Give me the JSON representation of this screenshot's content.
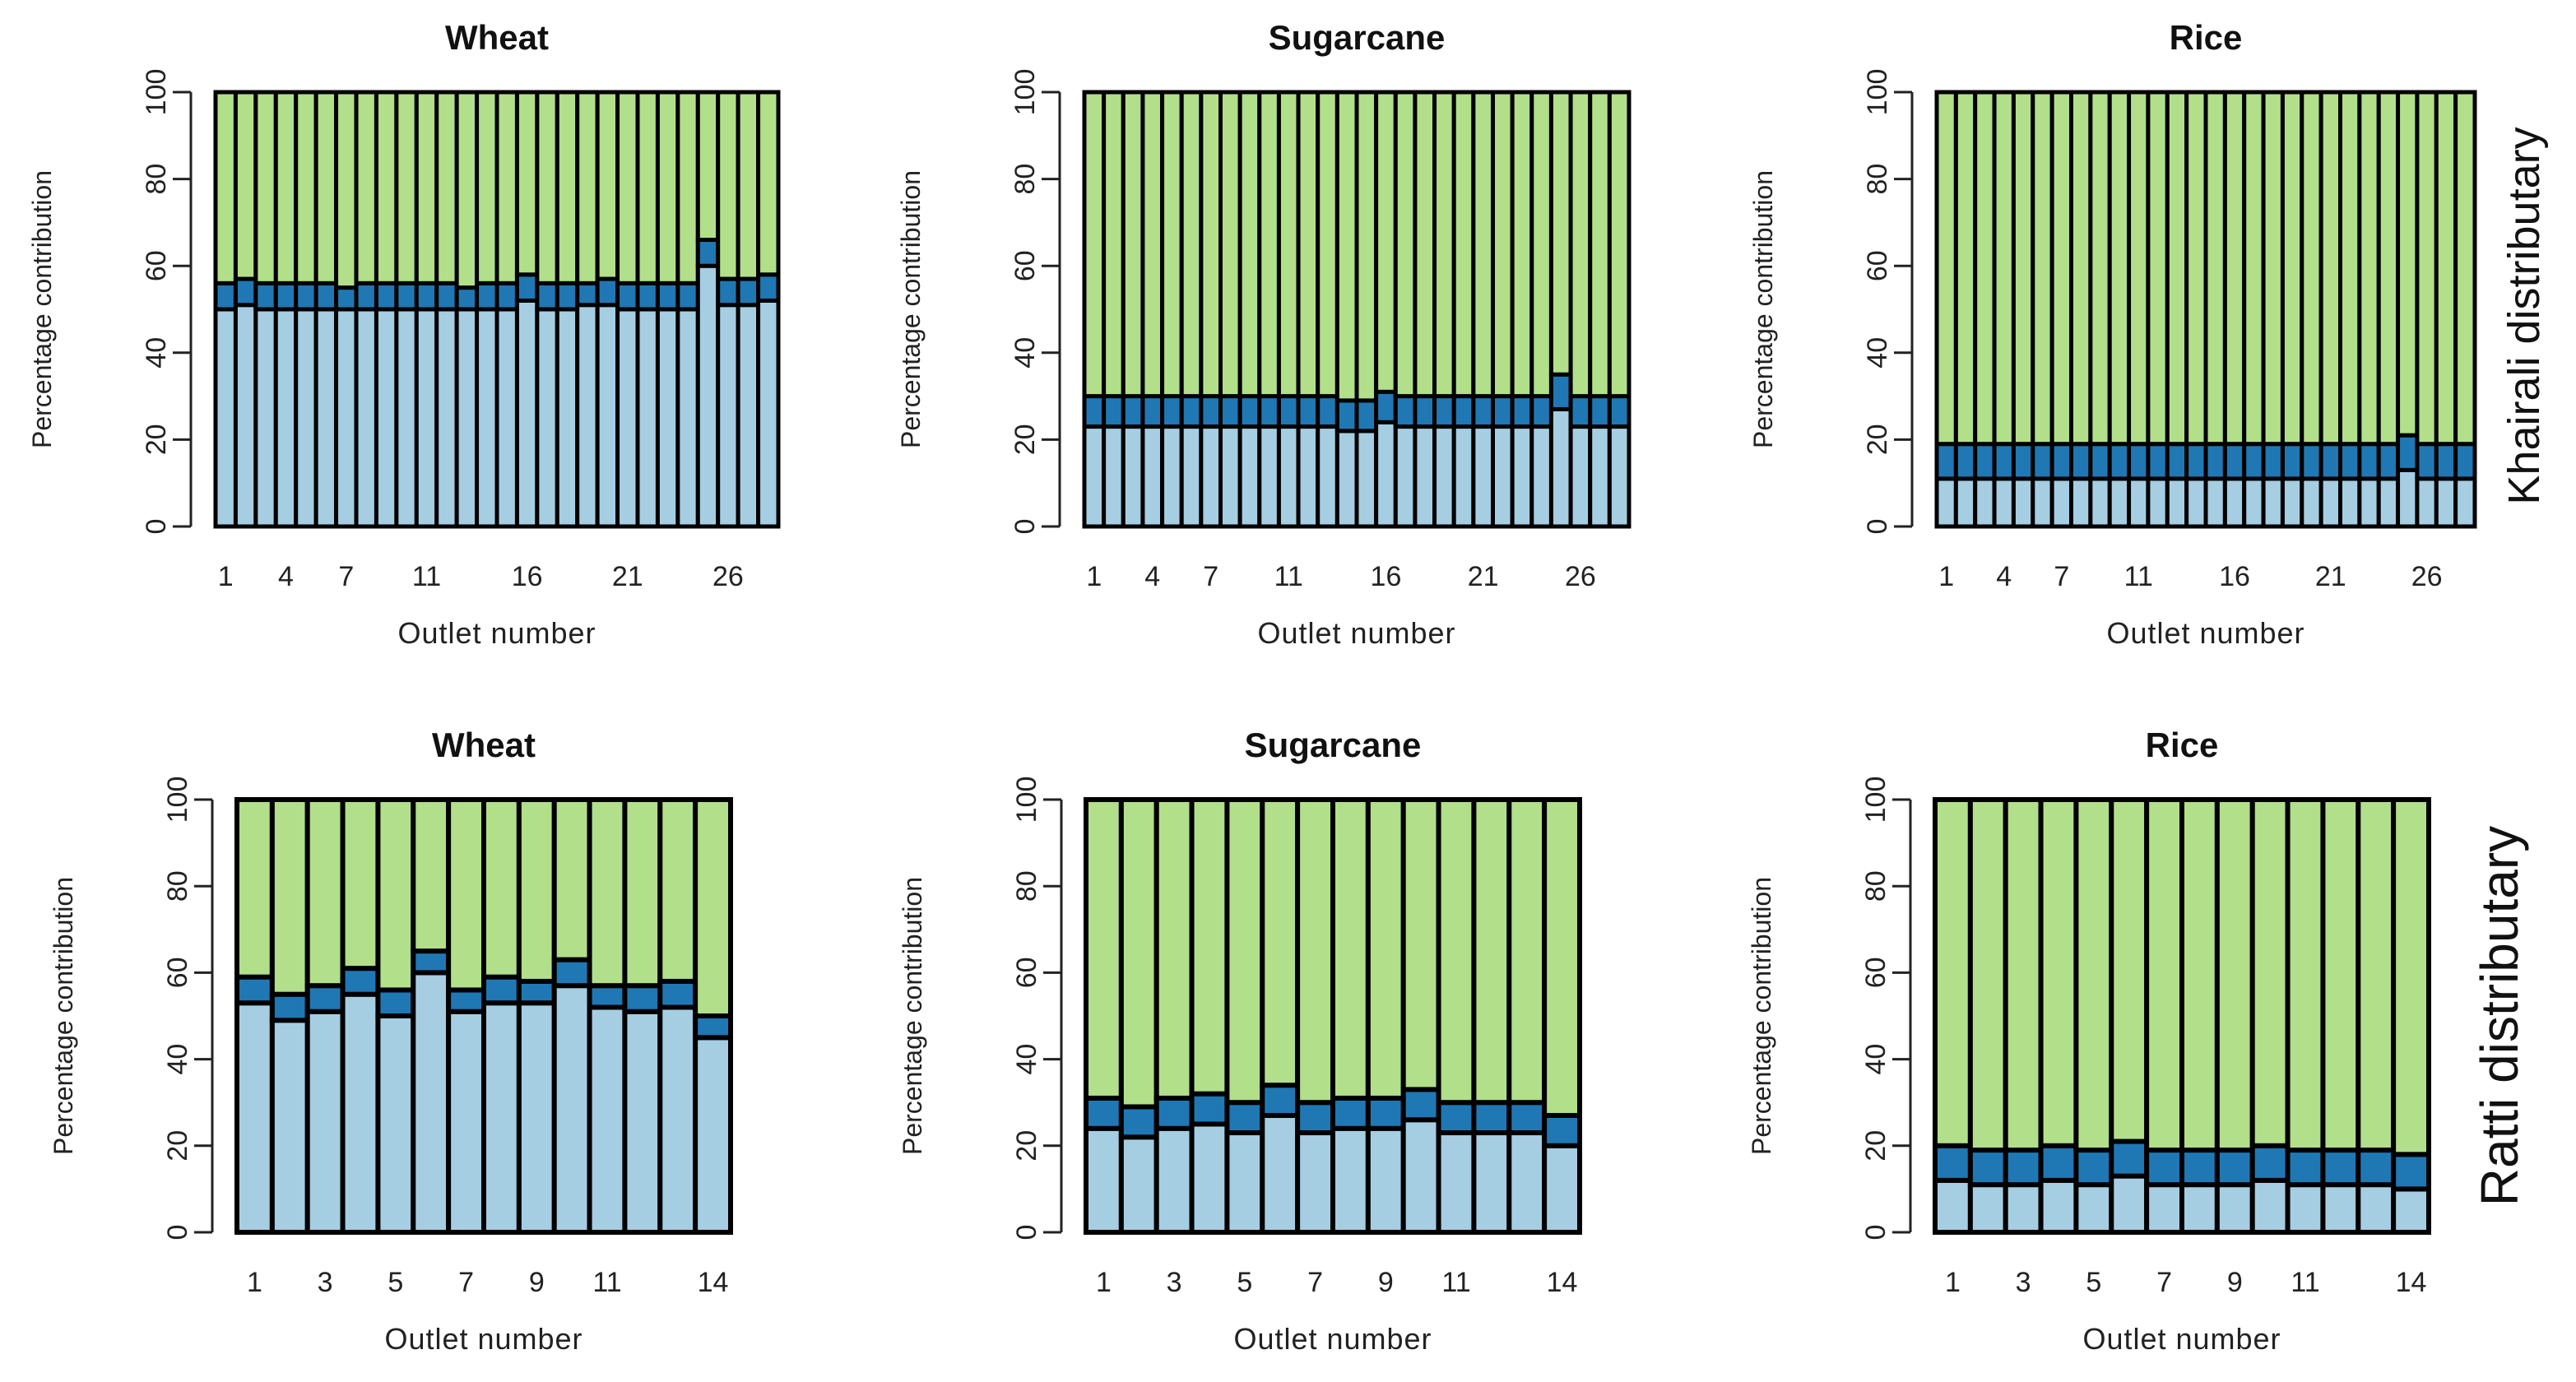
{
  "colors": {
    "bottom": "#a6cee3",
    "middle": "#1f78b4",
    "top": "#b2df8a",
    "bar_border": "#000000",
    "frame": "#000000"
  },
  "row_labels": [
    "Khairali distributary",
    "Ratti distributary"
  ],
  "chart_data": [
    {
      "type": "bar",
      "stacked": true,
      "title": "Wheat",
      "xlabel": "Outlet number",
      "ylabel": "Percentage contribution",
      "ylim": [
        0,
        100
      ],
      "yticks": [
        0,
        20,
        40,
        60,
        80,
        100
      ],
      "x_tick_labels": [
        "1",
        "4",
        "7",
        "11",
        "16",
        "21",
        "26"
      ],
      "x_tick_positions": [
        1,
        4,
        7,
        11,
        16,
        21,
        26
      ],
      "categories": [
        1,
        2,
        3,
        4,
        5,
        6,
        7,
        8,
        9,
        10,
        11,
        12,
        13,
        14,
        15,
        16,
        17,
        18,
        19,
        20,
        21,
        22,
        23,
        24,
        25,
        26,
        27,
        28
      ],
      "series": [
        {
          "values": [
            50,
            51,
            50,
            50,
            50,
            50,
            50,
            50,
            50,
            50,
            50,
            50,
            50,
            50,
            50,
            52,
            50,
            50,
            51,
            51,
            50,
            50,
            50,
            50,
            60,
            51,
            51,
            52
          ]
        },
        {
          "values": [
            6,
            6,
            6,
            6,
            6,
            6,
            5,
            6,
            6,
            6,
            6,
            6,
            5,
            6,
            6,
            6,
            6,
            6,
            5,
            6,
            6,
            6,
            6,
            6,
            6,
            6,
            6,
            6
          ]
        },
        {
          "values": [
            44,
            43,
            44,
            44,
            44,
            44,
            45,
            44,
            44,
            44,
            44,
            44,
            45,
            44,
            44,
            42,
            44,
            44,
            44,
            43,
            44,
            44,
            44,
            44,
            34,
            43,
            43,
            42
          ]
        }
      ]
    },
    {
      "type": "bar",
      "stacked": true,
      "title": "Sugarcane",
      "xlabel": "Outlet number",
      "ylabel": "Percentage contribution",
      "ylim": [
        0,
        100
      ],
      "yticks": [
        0,
        20,
        40,
        60,
        80,
        100
      ],
      "x_tick_labels": [
        "1",
        "4",
        "7",
        "11",
        "16",
        "21",
        "26"
      ],
      "x_tick_positions": [
        1,
        4,
        7,
        11,
        16,
        21,
        26
      ],
      "categories": [
        1,
        2,
        3,
        4,
        5,
        6,
        7,
        8,
        9,
        10,
        11,
        12,
        13,
        14,
        15,
        16,
        17,
        18,
        19,
        20,
        21,
        22,
        23,
        24,
        25,
        26,
        27,
        28
      ],
      "series": [
        {
          "values": [
            23,
            23,
            23,
            23,
            23,
            23,
            23,
            23,
            23,
            23,
            23,
            23,
            23,
            22,
            22,
            24,
            23,
            23,
            23,
            23,
            23,
            23,
            23,
            23,
            27,
            23,
            23,
            23
          ]
        },
        {
          "values": [
            7,
            7,
            7,
            7,
            7,
            7,
            7,
            7,
            7,
            7,
            7,
            7,
            7,
            7,
            7,
            7,
            7,
            7,
            7,
            7,
            7,
            7,
            7,
            7,
            8,
            7,
            7,
            7
          ]
        },
        {
          "values": [
            70,
            70,
            70,
            70,
            70,
            70,
            70,
            70,
            70,
            70,
            70,
            70,
            70,
            71,
            71,
            69,
            70,
            70,
            70,
            70,
            70,
            70,
            70,
            70,
            65,
            70,
            70,
            70
          ]
        }
      ]
    },
    {
      "type": "bar",
      "stacked": true,
      "title": "Rice",
      "xlabel": "Outlet number",
      "ylabel": "Percentage contribution",
      "ylim": [
        0,
        100
      ],
      "yticks": [
        0,
        20,
        40,
        60,
        80,
        100
      ],
      "x_tick_labels": [
        "1",
        "4",
        "7",
        "11",
        "16",
        "21",
        "26"
      ],
      "x_tick_positions": [
        1,
        4,
        7,
        11,
        16,
        21,
        26
      ],
      "categories": [
        1,
        2,
        3,
        4,
        5,
        6,
        7,
        8,
        9,
        10,
        11,
        12,
        13,
        14,
        15,
        16,
        17,
        18,
        19,
        20,
        21,
        22,
        23,
        24,
        25,
        26,
        27,
        28
      ],
      "series": [
        {
          "values": [
            11,
            11,
            11,
            11,
            11,
            11,
            11,
            11,
            11,
            11,
            11,
            11,
            11,
            11,
            11,
            11,
            11,
            11,
            11,
            11,
            11,
            11,
            11,
            11,
            13,
            11,
            11,
            11
          ]
        },
        {
          "values": [
            8,
            8,
            8,
            8,
            8,
            8,
            8,
            8,
            8,
            8,
            8,
            8,
            8,
            8,
            8,
            8,
            8,
            8,
            8,
            8,
            8,
            8,
            8,
            8,
            8,
            8,
            8,
            8
          ]
        },
        {
          "values": [
            81,
            81,
            81,
            81,
            81,
            81,
            81,
            81,
            81,
            81,
            81,
            81,
            81,
            81,
            81,
            81,
            81,
            81,
            81,
            81,
            81,
            81,
            81,
            81,
            79,
            81,
            81,
            81
          ]
        }
      ]
    },
    {
      "type": "bar",
      "stacked": true,
      "title": "Wheat",
      "xlabel": "Outlet number",
      "ylabel": "Percentage contribution",
      "ylim": [
        0,
        100
      ],
      "yticks": [
        0,
        20,
        40,
        60,
        80,
        100
      ],
      "x_tick_labels": [
        "1",
        "3",
        "5",
        "7",
        "9",
        "11",
        "14"
      ],
      "x_tick_positions": [
        1,
        3,
        5,
        7,
        9,
        11,
        14
      ],
      "categories": [
        1,
        2,
        3,
        4,
        5,
        6,
        7,
        8,
        9,
        10,
        11,
        12,
        13,
        14
      ],
      "series": [
        {
          "values": [
            53,
            49,
            51,
            55,
            50,
            60,
            51,
            53,
            53,
            57,
            52,
            51,
            52,
            45
          ]
        },
        {
          "values": [
            6,
            6,
            6,
            6,
            6,
            5,
            5,
            6,
            5,
            6,
            5,
            6,
            6,
            5
          ]
        },
        {
          "values": [
            41,
            45,
            43,
            39,
            44,
            35,
            44,
            41,
            42,
            37,
            43,
            43,
            42,
            50
          ]
        }
      ]
    },
    {
      "type": "bar",
      "stacked": true,
      "title": "Sugarcane",
      "xlabel": "Outlet number",
      "ylabel": "Percentage contribution",
      "ylim": [
        0,
        100
      ],
      "yticks": [
        0,
        20,
        40,
        60,
        80,
        100
      ],
      "x_tick_labels": [
        "1",
        "3",
        "5",
        "7",
        "9",
        "11",
        "14"
      ],
      "x_tick_positions": [
        1,
        3,
        5,
        7,
        9,
        11,
        14
      ],
      "categories": [
        1,
        2,
        3,
        4,
        5,
        6,
        7,
        8,
        9,
        10,
        11,
        12,
        13,
        14
      ],
      "series": [
        {
          "values": [
            24,
            22,
            24,
            25,
            23,
            27,
            23,
            24,
            24,
            26,
            23,
            23,
            23,
            20
          ]
        },
        {
          "values": [
            7,
            7,
            7,
            7,
            7,
            7,
            7,
            7,
            7,
            7,
            7,
            7,
            7,
            7
          ]
        },
        {
          "values": [
            69,
            71,
            69,
            68,
            70,
            66,
            70,
            69,
            69,
            67,
            70,
            70,
            70,
            73
          ]
        }
      ]
    },
    {
      "type": "bar",
      "stacked": true,
      "title": "Rice",
      "xlabel": "Outlet number",
      "ylabel": "Percentage contribution",
      "ylim": [
        0,
        100
      ],
      "yticks": [
        0,
        20,
        40,
        60,
        80,
        100
      ],
      "x_tick_labels": [
        "1",
        "3",
        "5",
        "7",
        "9",
        "11",
        "14"
      ],
      "x_tick_positions": [
        1,
        3,
        5,
        7,
        9,
        11,
        14
      ],
      "categories": [
        1,
        2,
        3,
        4,
        5,
        6,
        7,
        8,
        9,
        10,
        11,
        12,
        13,
        14
      ],
      "series": [
        {
          "values": [
            12,
            11,
            11,
            12,
            11,
            13,
            11,
            11,
            11,
            12,
            11,
            11,
            11,
            10
          ]
        },
        {
          "values": [
            8,
            8,
            8,
            8,
            8,
            8,
            8,
            8,
            8,
            8,
            8,
            8,
            8,
            8
          ]
        },
        {
          "values": [
            80,
            81,
            81,
            80,
            81,
            79,
            81,
            81,
            81,
            80,
            81,
            81,
            81,
            82
          ]
        }
      ]
    }
  ]
}
